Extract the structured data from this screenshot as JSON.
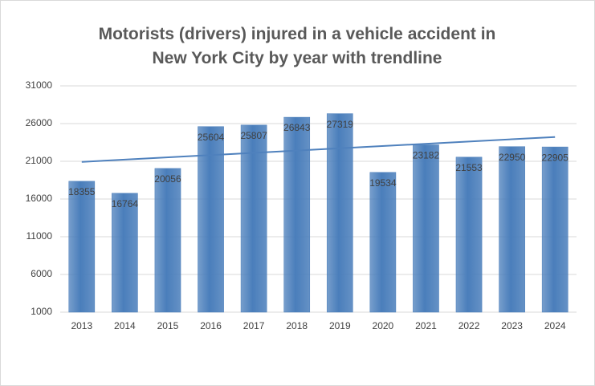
{
  "chart_data": {
    "type": "bar",
    "title": "Motorists (drivers) injured in a vehicle accident in New York City by year with trendline",
    "categories": [
      "2013",
      "2014",
      "2015",
      "2016",
      "2017",
      "2018",
      "2019",
      "2020",
      "2021",
      "2022",
      "2023",
      "2024"
    ],
    "values": [
      18355,
      16764,
      20056,
      25604,
      25807,
      26843,
      27319,
      19534,
      23182,
      21553,
      22950,
      22905
    ],
    "color": "#4a7ebb",
    "ylim": [
      1000,
      31000
    ],
    "yticks": [
      1000,
      6000,
      11000,
      16000,
      21000,
      26000,
      31000
    ],
    "grid": true,
    "trendline": true,
    "trendline_color": "#4f81bd"
  }
}
